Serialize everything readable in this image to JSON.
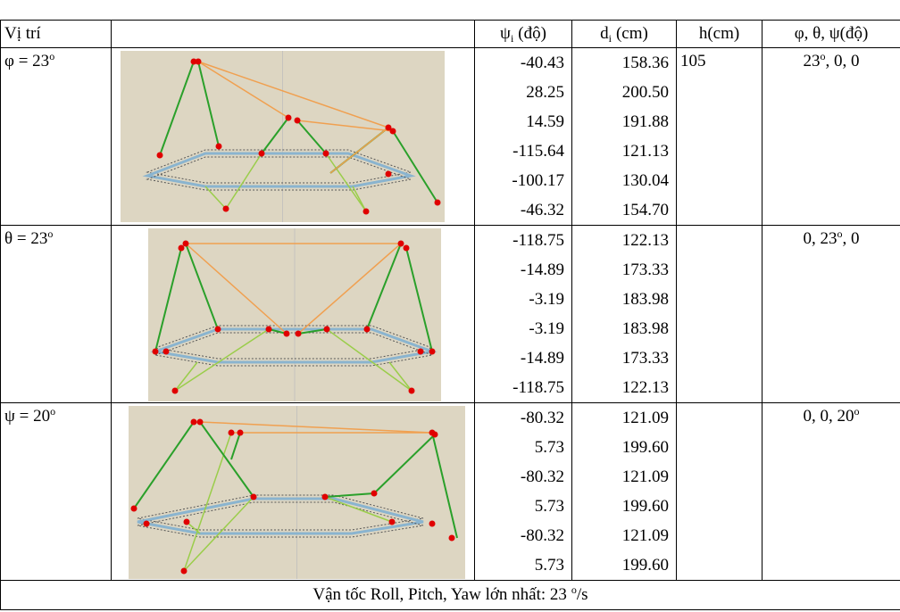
{
  "table": {
    "header": {
      "position": "Vị trí",
      "psi": {
        "symbol": "ψ",
        "sub": "i",
        "unit": "(độ)"
      },
      "d": {
        "symbol": "d",
        "sub": "i",
        "unit": "(cm)"
      },
      "h": "h(cm)",
      "angles": "φ, θ, ψ(độ)"
    },
    "rows": [
      {
        "label": {
          "text": "φ = 23",
          "sup": "o"
        },
        "psi": [
          "-40.43",
          "28.25",
          "14.59",
          "-115.64",
          "-100.17",
          "-46.32"
        ],
        "d": [
          "158.36",
          "200.50",
          "191.88",
          "121.13",
          "130.04",
          "154.70"
        ],
        "h": "105",
        "angles": {
          "pre": "23",
          "sup": "o",
          "post": ", 0, 0"
        }
      },
      {
        "label": {
          "text": "θ = 23",
          "sup": "o"
        },
        "psi": [
          "-118.75",
          "-14.89",
          "-3.19",
          "-3.19",
          "-14.89",
          "-118.75"
        ],
        "d": [
          "122.13",
          "173.33",
          "183.98",
          "183.98",
          "173.33",
          "122.13"
        ],
        "angles": {
          "pre": "0, 23",
          "sup": "o",
          "post": ", 0"
        }
      },
      {
        "label": {
          "text": "ψ = 20",
          "sup": "o"
        },
        "psi": [
          "-80.32",
          "5.73",
          "-80.32",
          "5.73",
          "-80.32",
          "5.73"
        ],
        "d": [
          "121.09",
          "199.60",
          "121.09",
          "199.60",
          "121.09",
          "199.60"
        ],
        "angles": {
          "pre": "0, 0, 20",
          "sup": "o"
        }
      }
    ],
    "footer": {
      "text": "Vận tốc Roll, Pitch, Yaw lớn nhất: 23",
      "sup": "o",
      "post": "/s"
    }
  }
}
